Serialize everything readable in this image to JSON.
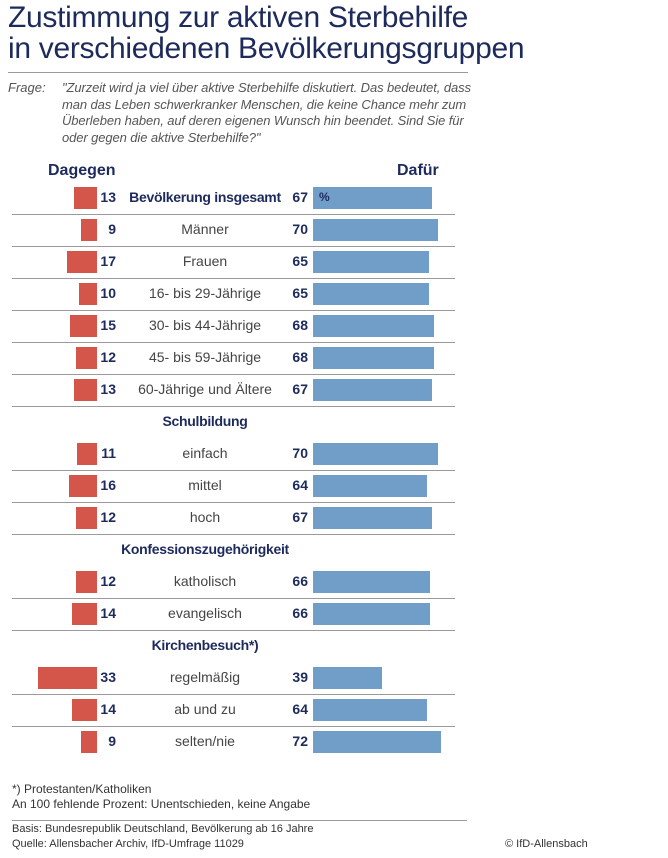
{
  "chart_data": {
    "type": "bar",
    "title": "Zustimmung zur aktiven Sterbehilfe in verschiedenen Bevölkerungsgruppen",
    "title_lines": [
      "Zustimmung zur aktiven Sterbehilfe",
      "in verschiedenen Bevölkerungsgruppen"
    ],
    "question_label": "Frage:",
    "question": "\"Zurzeit wird ja viel über aktive Sterbehilfe diskutiert. Das bedeutet, dass man das Leben schwerkranker Menschen, die keine Chance mehr zum Überleben haben, auf deren eigenen Wunsch hin beendet. Sind Sie für oder gegen die aktive Sterbehilfe?\"",
    "unit": "%",
    "colors": {
      "dagegen": "#d4564a",
      "dafuer": "#709ec8",
      "text": "#1d2a5c"
    },
    "series": [
      {
        "name": "Dagegen"
      },
      {
        "name": "Dafür"
      }
    ],
    "rows": [
      {
        "type": "row",
        "label": "Bevölkerung insgesamt",
        "bold": true,
        "dagegen": 13,
        "dafuer": 67
      },
      {
        "type": "row",
        "label": "Männer",
        "dagegen": 9,
        "dafuer": 70
      },
      {
        "type": "row",
        "label": "Frauen",
        "dagegen": 17,
        "dafuer": 65
      },
      {
        "type": "row",
        "label": "16- bis 29-Jährige",
        "dagegen": 10,
        "dafuer": 65
      },
      {
        "type": "row",
        "label": "30- bis 44-Jährige",
        "dagegen": 15,
        "dafuer": 68
      },
      {
        "type": "row",
        "label": "45- bis 59-Jährige",
        "dagegen": 12,
        "dafuer": 68
      },
      {
        "type": "row",
        "label": "60-Jährige und Ältere",
        "dagegen": 13,
        "dafuer": 67
      },
      {
        "type": "group",
        "label": "Schulbildung"
      },
      {
        "type": "row",
        "label": "einfach",
        "dagegen": 11,
        "dafuer": 70
      },
      {
        "type": "row",
        "label": "mittel",
        "dagegen": 16,
        "dafuer": 64
      },
      {
        "type": "row",
        "label": "hoch",
        "dagegen": 12,
        "dafuer": 67
      },
      {
        "type": "group",
        "label": "Konfessionszugehörigkeit"
      },
      {
        "type": "row",
        "label": "katholisch",
        "dagegen": 12,
        "dafuer": 66
      },
      {
        "type": "row",
        "label": "evangelisch",
        "dagegen": 14,
        "dafuer": 66
      },
      {
        "type": "group",
        "label": "Kirchenbesuch*)"
      },
      {
        "type": "row",
        "label": "regelmäßig",
        "dagegen": 33,
        "dafuer": 39
      },
      {
        "type": "row",
        "label": "ab und zu",
        "dagegen": 14,
        "dafuer": 64
      },
      {
        "type": "row",
        "label": "selten/nie",
        "dagegen": 9,
        "dafuer": 72
      }
    ],
    "footnotes": [
      "*) Protestanten/Katholiken",
      "An 100 fehlende Prozent: Unentschieden, keine Angabe"
    ],
    "basis": "Basis: Bundesrepublik Deutschland, Bevölkerung ab 16 Jahre",
    "source": "Quelle: Allensbacher Archiv, IfD-Umfrage 11029",
    "copyright": "© IfD-Allensbach"
  }
}
